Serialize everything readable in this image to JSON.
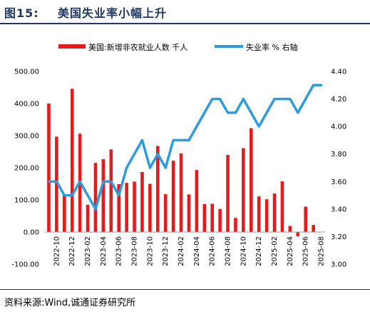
{
  "header": {
    "figure_no": "图15:",
    "title": "美国失业率小幅上升"
  },
  "footer": {
    "source": "资料来源:Wind,诚通证券研究所"
  },
  "colors": {
    "bar": "#e41a1c",
    "line": "#2e9bdc",
    "title": "#1f3864"
  },
  "chart_data": {
    "type": "bar",
    "legend": [
      "美国:新增非农就业人数  千人",
      "失业率  %  右轴"
    ],
    "legend_position": "top",
    "grid": false,
    "x_ticks": [
      "2022-10",
      "2022-12",
      "2023-02",
      "2023-04",
      "2023-06",
      "2023-08",
      "2023-10",
      "2023-12",
      "2024-02",
      "2024-04",
      "2024-06",
      "2024-08",
      "2024-10",
      "2024-12",
      "2025-02",
      "2025-04",
      "2025-06",
      "2025-08"
    ],
    "y_left": {
      "range": [
        -100,
        500
      ],
      "ticks": [
        "-100.00",
        "0.00",
        "100.00",
        "200.00",
        "300.00",
        "400.00",
        "500.00"
      ]
    },
    "y_right": {
      "range": [
        3.0,
        4.4
      ],
      "ticks": [
        "3.00",
        "3.20",
        "3.40",
        "3.60",
        "3.80",
        "4.00",
        "4.20",
        "4.40"
      ]
    },
    "series": [
      {
        "name": "美国:新增非农就业人数  千人",
        "type": "bar",
        "axis": "left",
        "x": [
          "2022-09",
          "2022-10",
          "2022-11",
          "2022-12",
          "2023-01",
          "2023-02",
          "2023-03",
          "2023-04",
          "2023-05",
          "2023-06",
          "2023-07",
          "2023-08",
          "2023-09",
          "2023-10",
          "2023-11",
          "2023-12",
          "2024-01",
          "2024-02",
          "2024-03",
          "2024-04",
          "2024-05",
          "2024-06",
          "2024-07",
          "2024-08",
          "2024-09",
          "2024-10",
          "2024-11",
          "2024-12",
          "2025-01",
          "2025-02",
          "2025-03",
          "2025-04",
          "2025-05",
          "2025-06",
          "2025-07",
          "2025-08"
        ],
        "values": [
          400,
          297,
          117,
          446,
          306,
          85,
          215,
          227,
          257,
          149,
          153,
          157,
          187,
          150,
          268,
          118,
          222,
          245,
          117,
          193,
          87,
          88,
          72,
          240,
          44,
          261,
          323,
          111,
          102,
          120,
          158,
          19,
          -13,
          79,
          22,
          0
        ]
      },
      {
        "name": "失业率  %  右轴",
        "type": "line",
        "axis": "right",
        "x": [
          "2022-09",
          "2022-10",
          "2022-11",
          "2022-12",
          "2023-01",
          "2023-02",
          "2023-03",
          "2023-04",
          "2023-05",
          "2023-06",
          "2023-07",
          "2023-08",
          "2023-09",
          "2023-10",
          "2023-11",
          "2023-12",
          "2024-01",
          "2024-02",
          "2024-03",
          "2024-04",
          "2024-05",
          "2024-06",
          "2024-07",
          "2024-08",
          "2024-09",
          "2024-10",
          "2024-11",
          "2024-12",
          "2025-01",
          "2025-02",
          "2025-03",
          "2025-04",
          "2025-05",
          "2025-06",
          "2025-07",
          "2025-08"
        ],
        "values": [
          3.6,
          3.6,
          3.5,
          3.5,
          3.6,
          3.5,
          3.4,
          3.6,
          3.6,
          3.5,
          3.7,
          3.8,
          3.9,
          3.7,
          3.8,
          3.7,
          3.9,
          3.9,
          3.9,
          4.0,
          4.1,
          4.2,
          4.2,
          4.1,
          4.1,
          4.2,
          4.1,
          4.0,
          4.1,
          4.2,
          4.2,
          4.2,
          4.1,
          4.2,
          4.3,
          4.3
        ]
      }
    ]
  }
}
